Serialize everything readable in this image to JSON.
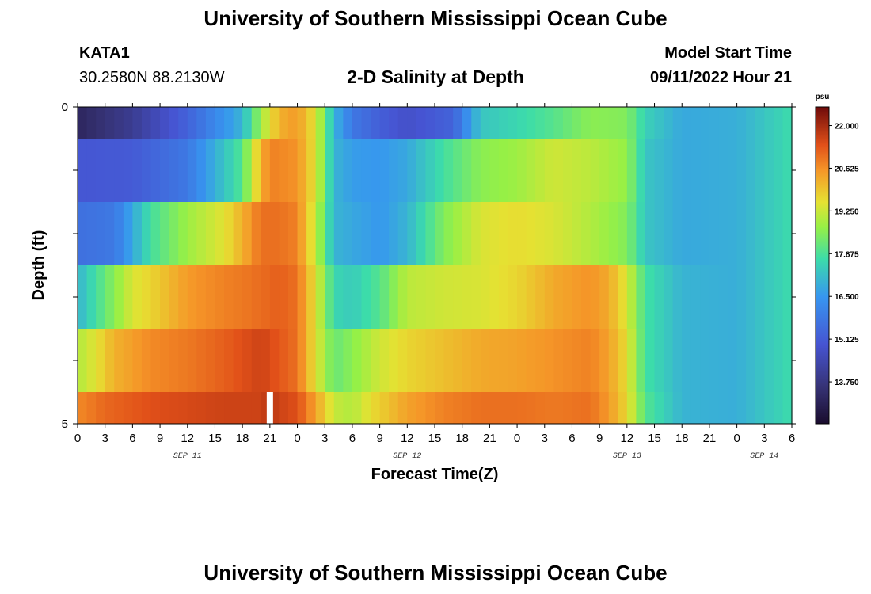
{
  "header": {
    "title": "University of Southern Mississippi Ocean Cube",
    "station_id": "KATA1",
    "station_coords": "30.2580N  88.2130W",
    "plot_subtitle": "2-D Salinity at Depth",
    "model_start_label": "Model Start Time",
    "model_start_value": "09/11/2022 Hour 21"
  },
  "footer": {
    "title": "University of Southern Mississippi Ocean Cube"
  },
  "chart_data": {
    "type": "heatmap",
    "title": "2-D Salinity at Depth",
    "xlabel": "Forecast Time(Z)",
    "ylabel": "Depth (ft)",
    "x_unit": "hours since 09/11 00Z",
    "xlim": [
      0,
      78
    ],
    "ylim": [
      0,
      5
    ],
    "y_tick_labels": [
      "0",
      "5"
    ],
    "x_tick_labels": [
      "0",
      "3",
      "6",
      "9",
      "12",
      "15",
      "18",
      "21",
      "0",
      "3",
      "6",
      "9",
      "12",
      "15",
      "18",
      "21",
      "0",
      "3",
      "6",
      "9",
      "12",
      "15",
      "18",
      "21",
      "0",
      "3",
      "6"
    ],
    "date_labels": [
      {
        "hour": 12,
        "label": "SEP 11"
      },
      {
        "hour": 36,
        "label": "SEP 12"
      },
      {
        "hour": 60,
        "label": "SEP 13"
      },
      {
        "hour": 75,
        "label": "SEP 14"
      }
    ],
    "depth_layers": [
      0,
      1,
      2,
      3,
      4,
      5
    ],
    "layers": [
      {
        "depth_range": [
          0,
          0.5
        ],
        "key_hours": [
          0,
          6,
          12,
          18,
          20,
          22,
          24,
          26,
          28,
          30,
          33,
          36,
          41,
          44,
          48,
          52,
          56,
          60,
          62,
          66,
          72,
          78
        ],
        "values": [
          13.2,
          14.0,
          15.3,
          17.0,
          18.8,
          20.2,
          20.5,
          19.5,
          17.0,
          15.8,
          15.2,
          14.8,
          15.3,
          17.3,
          17.6,
          18.0,
          18.6,
          18.5,
          17.5,
          16.8,
          16.9,
          17.7
        ]
      },
      {
        "depth_range": [
          0.5,
          1.5
        ],
        "key_hours": [
          0,
          6,
          12,
          18,
          20,
          21,
          24,
          26,
          28,
          30,
          33,
          36,
          40,
          44,
          48,
          52,
          56,
          60,
          62,
          66,
          72,
          78
        ],
        "values": [
          15.0,
          15.1,
          15.8,
          18.0,
          20.2,
          20.8,
          20.6,
          19.5,
          17.0,
          16.6,
          16.5,
          16.8,
          17.8,
          18.6,
          18.8,
          19.3,
          19.1,
          18.7,
          17.3,
          16.8,
          16.9,
          17.7
        ]
      },
      {
        "depth_range": [
          1.5,
          2.5
        ],
        "key_hours": [
          0,
          4,
          8,
          12,
          16,
          18,
          20,
          22,
          24,
          26,
          28,
          30,
          33,
          36,
          40,
          44,
          48,
          52,
          56,
          60,
          62,
          66,
          72,
          78
        ],
        "values": [
          15.6,
          15.8,
          17.8,
          18.8,
          19.5,
          20.2,
          21.0,
          21.0,
          20.8,
          19.2,
          17.0,
          16.8,
          16.5,
          17.0,
          18.5,
          19.4,
          19.6,
          19.4,
          19.0,
          18.5,
          17.3,
          16.8,
          16.9,
          17.7
        ]
      },
      {
        "depth_range": [
          2.5,
          3.5
        ],
        "key_hours": [
          0,
          2,
          4,
          6,
          9,
          12,
          16,
          18,
          22,
          24,
          26,
          28,
          30,
          33,
          36,
          40,
          44,
          48,
          52,
          56,
          58,
          60,
          62,
          66,
          72,
          78
        ],
        "values": [
          17.0,
          17.8,
          18.6,
          19.4,
          19.9,
          20.5,
          20.8,
          20.9,
          21.2,
          21.0,
          19.5,
          17.6,
          17.4,
          18.0,
          19.1,
          19.3,
          19.4,
          19.7,
          20.3,
          20.6,
          20.3,
          19.4,
          17.8,
          17.0,
          16.9,
          17.7
        ]
      },
      {
        "depth_range": [
          3.5,
          4.5
        ],
        "key_hours": [
          0,
          2,
          4,
          8,
          12,
          16,
          18,
          20,
          22,
          24,
          26,
          28,
          30,
          33,
          36,
          40,
          44,
          48,
          52,
          56,
          58,
          60,
          62,
          66,
          72,
          78
        ],
        "values": [
          19.0,
          19.5,
          20.2,
          20.7,
          20.9,
          21.2,
          21.4,
          21.6,
          21.3,
          21.0,
          19.5,
          18.2,
          18.6,
          19.3,
          19.7,
          20.0,
          20.3,
          20.4,
          20.6,
          20.8,
          20.4,
          19.6,
          17.8,
          17.0,
          16.9,
          17.7
        ]
      },
      {
        "depth_range": [
          4.5,
          5
        ],
        "key_hours": [
          0,
          3,
          8,
          12,
          16,
          20,
          21,
          22,
          24,
          26,
          28,
          30,
          32,
          36,
          40,
          44,
          48,
          52,
          56,
          58,
          60,
          62,
          66,
          72,
          78
        ],
        "values": [
          20.7,
          21.1,
          21.4,
          21.5,
          21.6,
          21.6,
          21.8,
          21.6,
          21.4,
          20.4,
          19.2,
          19.0,
          19.6,
          20.4,
          20.8,
          21.0,
          21.0,
          20.9,
          21.0,
          20.5,
          19.7,
          18.0,
          17.0,
          16.9,
          17.7
        ]
      }
    ],
    "missing_data": [
      {
        "hour": 21,
        "depth_range": [
          4.5,
          5
        ],
        "color": "#ffffff"
      }
    ],
    "colorbar": {
      "unit": "psu",
      "range": [
        12.4,
        22.6
      ],
      "tick_values": [
        22.0,
        20.625,
        19.25,
        17.875,
        16.5,
        15.125,
        13.75
      ],
      "tick_labels": [
        "22.000",
        "20.625",
        "19.250",
        "17.875",
        "16.500",
        "15.125",
        "13.750"
      ]
    }
  }
}
